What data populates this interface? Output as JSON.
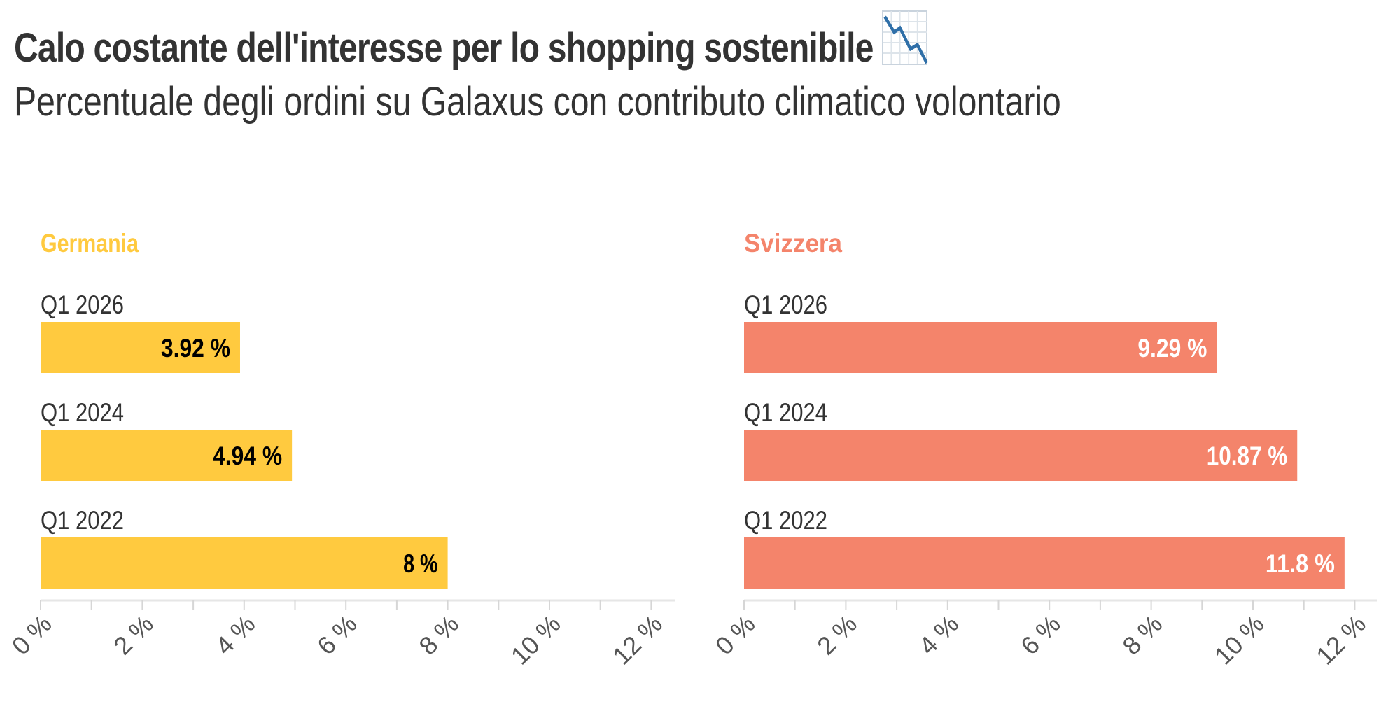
{
  "title": "Calo costante dell'interesse per lo shopping sostenibile",
  "title_icon": "chart-decreasing-icon",
  "subtitle": "Percentuale degli ordini su Galaxus con contributo climatico volontario",
  "chart_data": [
    {
      "type": "bar",
      "orientation": "horizontal",
      "title": "Germania",
      "color": "#FFCA3F",
      "label_color": "#000000",
      "categories": [
        "Q1 2026",
        "Q1 2024",
        "Q1 2022"
      ],
      "values": [
        3.92,
        4.94,
        8
      ],
      "value_labels": [
        "3.92 %",
        "4.94 %",
        "8 %"
      ],
      "xlim": [
        0,
        12.5
      ],
      "ticks": [
        0,
        2,
        4,
        6,
        8,
        10,
        12
      ],
      "tick_labels": [
        "0 %",
        "2 %",
        "4 %",
        "6 %",
        "8 %",
        "10 %",
        "12 %"
      ],
      "xlabel": "",
      "ylabel": "",
      "grid": false
    },
    {
      "type": "bar",
      "orientation": "horizontal",
      "title": "Svizzera",
      "color": "#F4846B",
      "label_color": "#FFFFFF",
      "categories": [
        "Q1 2026",
        "Q1 2024",
        "Q1 2022"
      ],
      "values": [
        9.29,
        10.87,
        11.8
      ],
      "value_labels": [
        "9.29 %",
        "10.87 %",
        "11.8 %"
      ],
      "xlim": [
        0,
        12.5
      ],
      "ticks": [
        0,
        2,
        4,
        6,
        8,
        10,
        12
      ],
      "tick_labels": [
        "0 %",
        "2 %",
        "4 %",
        "6 %",
        "8 %",
        "10 %",
        "12 %"
      ],
      "xlabel": "",
      "ylabel": "",
      "grid": false
    }
  ]
}
